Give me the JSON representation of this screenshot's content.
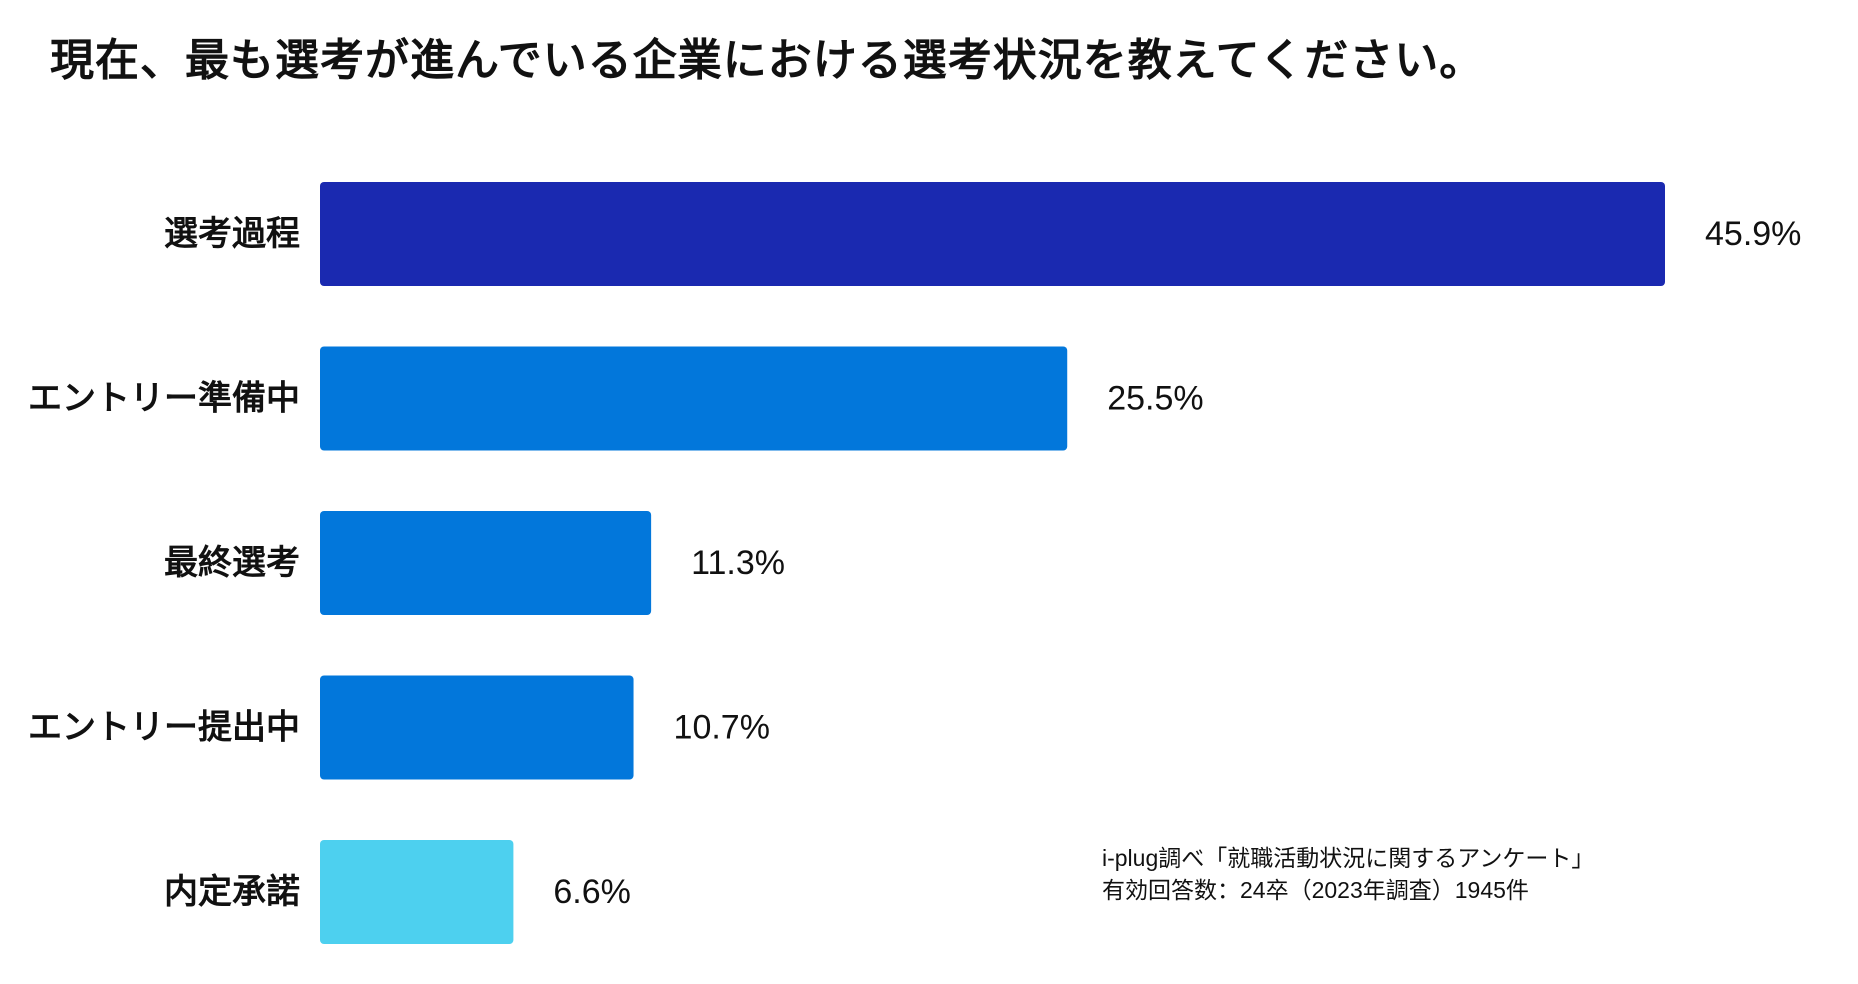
{
  "chart_data": {
    "type": "bar",
    "orientation": "horizontal",
    "title": "現在、最も選考が進んでいる企業における選考状況を教えてください。",
    "categories": [
      "選考過程",
      "エントリー準備中",
      "最終選考",
      "エントリー提出中",
      "内定承諾"
    ],
    "values": [
      45.9,
      25.5,
      11.3,
      10.7,
      6.6
    ],
    "value_labels": [
      "45.9%",
      "25.5%",
      "11.3%",
      "10.7%",
      "6.6%"
    ],
    "unit": "%",
    "colors": [
      "#1a29b0",
      "#0277db",
      "#0277db",
      "#0277db",
      "#4dd0ef"
    ],
    "xlabel": "",
    "ylabel": "",
    "grid": false,
    "legend": "none"
  },
  "notes": {
    "source": "i-plug調べ「就職活動状況に関するアンケート」",
    "responses": "有効回答数：24卒（2023年調査）1945件"
  }
}
